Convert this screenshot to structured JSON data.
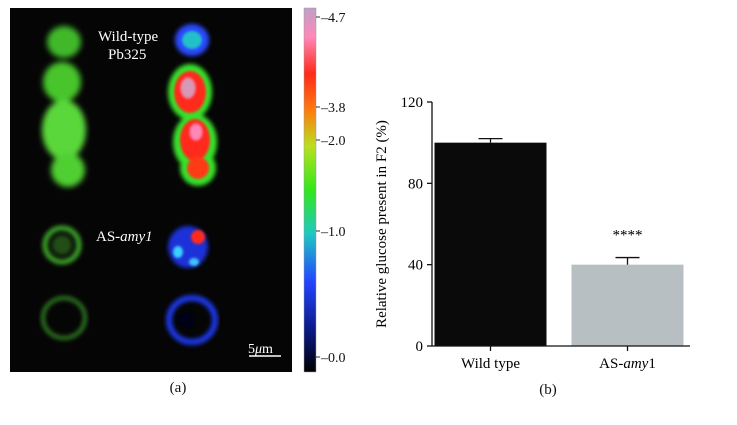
{
  "panel_a": {
    "label": "(a)",
    "annotations": {
      "wild_type_line1": "Wild-type",
      "wild_type_line2": "Pb325",
      "as_prefix": "AS-",
      "as_italic": "amy1",
      "scale_number": "5",
      "scale_mu": "μ",
      "scale_unit": "m"
    },
    "colorbar": {
      "tick_labels": [
        "–4.7",
        "–3.8",
        "–2.0",
        "–1.0",
        "–0.0"
      ],
      "ticks": [
        4.7,
        3.8,
        2.0,
        1.0,
        0.0
      ]
    }
  },
  "panel_b": {
    "label": "(b)",
    "significance": "****"
  },
  "chart_data": {
    "type": "bar",
    "categories": [
      "Wild type",
      "AS-amy1"
    ],
    "category_parts": [
      {
        "plain": "Wild type",
        "italic": "",
        "tail": ""
      },
      {
        "plain": "AS-",
        "italic": "amy",
        "tail": "1"
      }
    ],
    "values": [
      100,
      40
    ],
    "errors": [
      2,
      3.5
    ],
    "colors": [
      "#0a0a0a",
      "#b8bfc3"
    ],
    "ylabel": "Relative glucose present in F2 (%)",
    "ylim": [
      0,
      120
    ],
    "yticks": [
      0,
      40,
      80,
      120
    ],
    "grid": false
  }
}
